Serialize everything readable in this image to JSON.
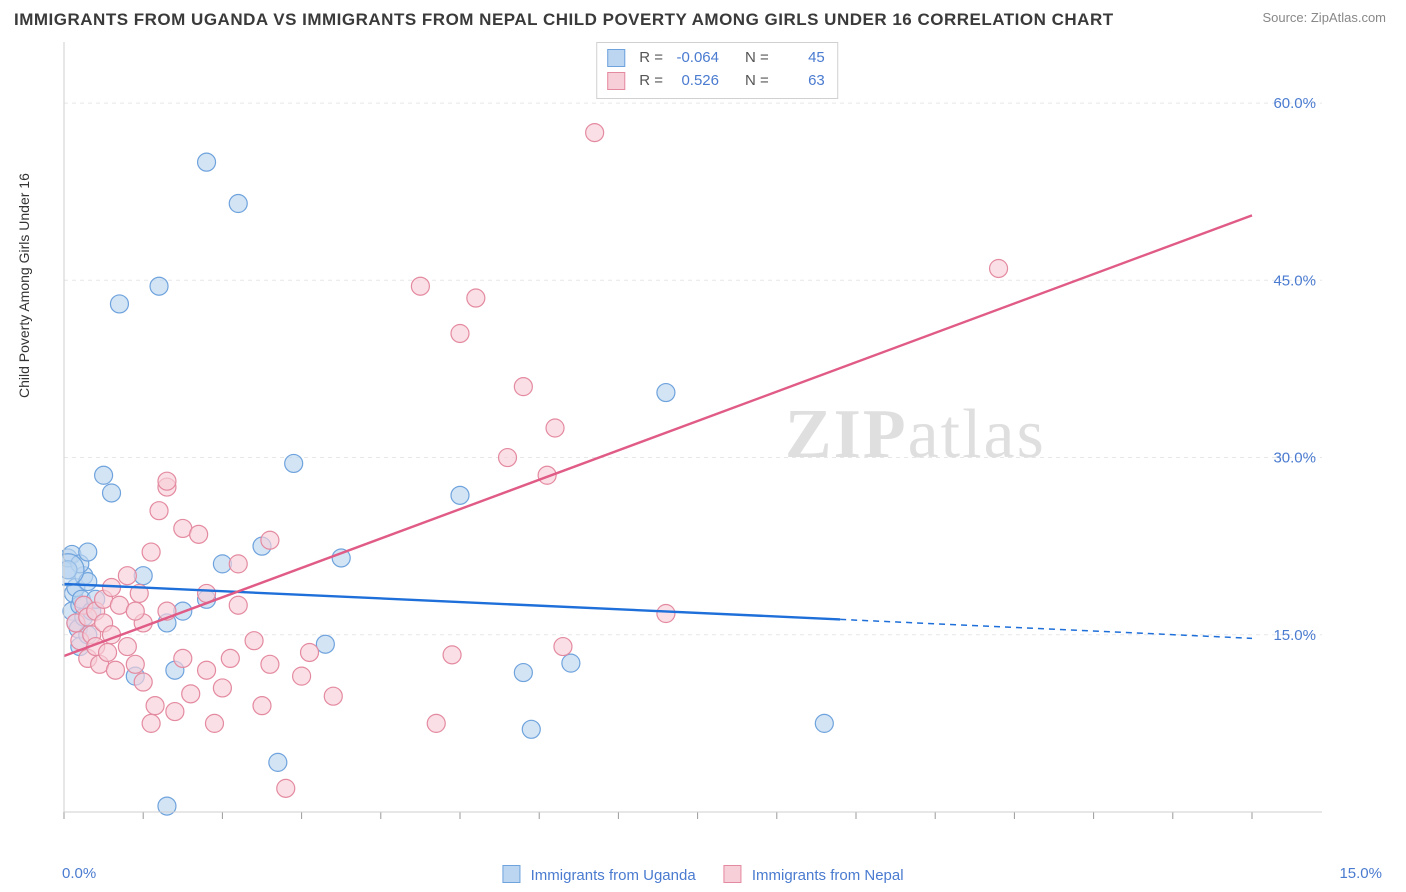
{
  "title": "IMMIGRANTS FROM UGANDA VS IMMIGRANTS FROM NEPAL CHILD POVERTY AMONG GIRLS UNDER 16 CORRELATION CHART",
  "source": "Source: ZipAtlas.com",
  "watermark": "ZIPatlas",
  "y_axis_label": "Child Poverty Among Girls Under 16",
  "chart": {
    "type": "scatter",
    "background_color": "#ffffff",
    "grid_color": "#e7e7e7",
    "grid_dash": "4 4",
    "axis_color": "#cfcfcf",
    "tick_color": "#9a9a9a",
    "x_domain": [
      0,
      15
    ],
    "y_domain": [
      0,
      65
    ],
    "y_ticks": [
      15,
      30,
      45,
      60
    ],
    "y_tick_labels": [
      "15.0%",
      "30.0%",
      "45.0%",
      "60.0%"
    ],
    "x_ticks_minor": [
      0,
      1,
      2,
      3,
      4,
      5,
      6,
      7,
      8,
      9,
      10,
      11,
      12,
      13,
      14,
      15
    ],
    "x_tick_left_label": "0.0%",
    "x_tick_right_label": "15.0%",
    "y_label_color": "#4a7bd0",
    "y_label_fontsize": 15,
    "marker_radius": 9,
    "marker_stroke_width": 1.2,
    "trend_line_width": 2.4
  },
  "series": [
    {
      "key": "uganda",
      "label": "Immigrants from Uganda",
      "fill": "#bcd5f0",
      "stroke": "#6fa3dd",
      "line_color": "#1e6fd9",
      "r": -0.064,
      "n": 45,
      "trend": {
        "x1": 0,
        "y1": 19.3,
        "x2_solid": 9.8,
        "x2_dash": 15,
        "y2_solid": 16.3,
        "y2_dash": 14.7
      },
      "points": [
        [
          0.05,
          20.5
        ],
        [
          0.1,
          17
        ],
        [
          0.12,
          18.5
        ],
        [
          0.15,
          16
        ],
        [
          0.15,
          19
        ],
        [
          0.18,
          15.5
        ],
        [
          0.2,
          17.5
        ],
        [
          0.2,
          14
        ],
        [
          0.22,
          18
        ],
        [
          0.25,
          16.5
        ],
        [
          0.25,
          20
        ],
        [
          0.3,
          15
        ],
        [
          0.3,
          19.5
        ],
        [
          0.35,
          17
        ],
        [
          0.4,
          18
        ],
        [
          0.05,
          21.5
        ],
        [
          0.1,
          21.8
        ],
        [
          0.2,
          21
        ],
        [
          0.3,
          22
        ],
        [
          0.5,
          28.5
        ],
        [
          0.6,
          27
        ],
        [
          0.7,
          43
        ],
        [
          0.9,
          11.5
        ],
        [
          1.0,
          20
        ],
        [
          1.2,
          44.5
        ],
        [
          1.3,
          16
        ],
        [
          1.3,
          0.5
        ],
        [
          1.4,
          12
        ],
        [
          1.5,
          17
        ],
        [
          1.8,
          55
        ],
        [
          1.8,
          18
        ],
        [
          2.0,
          21
        ],
        [
          2.2,
          51.5
        ],
        [
          2.5,
          22.5
        ],
        [
          2.7,
          4.2
        ],
        [
          2.9,
          29.5
        ],
        [
          3.3,
          14.2
        ],
        [
          3.5,
          21.5
        ],
        [
          5.0,
          26.8
        ],
        [
          5.8,
          11.8
        ],
        [
          5.9,
          7.0
        ],
        [
          6.4,
          12.6
        ],
        [
          7.6,
          35.5
        ],
        [
          9.6,
          7.5
        ],
        [
          0.05,
          20.5
        ]
      ],
      "big_point": [
        0.05,
        20.5
      ]
    },
    {
      "key": "nepal",
      "label": "Immigrants from Nepal",
      "fill": "#f7cfd8",
      "stroke": "#e48aa0",
      "line_color": "#e05b86",
      "r": 0.526,
      "n": 63,
      "trend": {
        "x1": 0,
        "y1": 13.2,
        "x2_solid": 15,
        "y2_solid": 50.5
      },
      "points": [
        [
          0.15,
          16
        ],
        [
          0.2,
          14.5
        ],
        [
          0.25,
          17.5
        ],
        [
          0.3,
          13
        ],
        [
          0.3,
          16.5
        ],
        [
          0.35,
          15
        ],
        [
          0.4,
          14
        ],
        [
          0.4,
          17
        ],
        [
          0.45,
          12.5
        ],
        [
          0.5,
          16
        ],
        [
          0.5,
          18
        ],
        [
          0.55,
          13.5
        ],
        [
          0.6,
          15
        ],
        [
          0.6,
          19
        ],
        [
          0.65,
          12
        ],
        [
          0.7,
          17.5
        ],
        [
          0.8,
          20
        ],
        [
          0.8,
          14
        ],
        [
          0.9,
          12.5
        ],
        [
          0.95,
          18.5
        ],
        [
          1.0,
          11
        ],
        [
          1.0,
          16
        ],
        [
          1.1,
          22
        ],
        [
          1.1,
          7.5
        ],
        [
          1.15,
          9
        ],
        [
          1.2,
          25.5
        ],
        [
          1.3,
          17
        ],
        [
          1.3,
          27.5
        ],
        [
          1.4,
          8.5
        ],
        [
          1.5,
          13
        ],
        [
          1.5,
          24
        ],
        [
          1.6,
          10
        ],
        [
          1.7,
          23.5
        ],
        [
          1.8,
          12
        ],
        [
          1.8,
          18.5
        ],
        [
          1.9,
          7.5
        ],
        [
          2.0,
          10.5
        ],
        [
          2.1,
          13
        ],
        [
          2.2,
          21
        ],
        [
          2.4,
          14.5
        ],
        [
          2.5,
          9
        ],
        [
          2.6,
          23
        ],
        [
          2.6,
          12.5
        ],
        [
          2.8,
          2.0
        ],
        [
          3.0,
          11.5
        ],
        [
          3.1,
          13.5
        ],
        [
          3.4,
          9.8
        ],
        [
          4.5,
          44.5
        ],
        [
          4.7,
          7.5
        ],
        [
          4.9,
          13.3
        ],
        [
          5.0,
          40.5
        ],
        [
          5.2,
          43.5
        ],
        [
          5.6,
          30
        ],
        [
          5.8,
          36
        ],
        [
          6.1,
          28.5
        ],
        [
          6.2,
          32.5
        ],
        [
          6.3,
          14
        ],
        [
          6.7,
          57.5
        ],
        [
          7.6,
          16.8
        ],
        [
          11.8,
          46
        ],
        [
          1.3,
          28
        ],
        [
          2.2,
          17.5
        ],
        [
          0.9,
          17
        ]
      ]
    }
  ],
  "stats_box": {
    "rows": [
      {
        "swatch_fill": "#bcd5f0",
        "swatch_stroke": "#6fa3dd",
        "r_label": "R =",
        "r_val": "-0.064",
        "n_label": "N =",
        "n_val": "45"
      },
      {
        "swatch_fill": "#f7cfd8",
        "swatch_stroke": "#e48aa0",
        "r_label": "R =",
        "r_val": "0.526",
        "n_label": "N =",
        "n_val": "63"
      }
    ]
  },
  "bottom_legend": [
    {
      "swatch_fill": "#bcd5f0",
      "swatch_stroke": "#6fa3dd",
      "label": "Immigrants from Uganda"
    },
    {
      "swatch_fill": "#f7cfd8",
      "swatch_stroke": "#e48aa0",
      "label": "Immigrants from Nepal"
    }
  ]
}
